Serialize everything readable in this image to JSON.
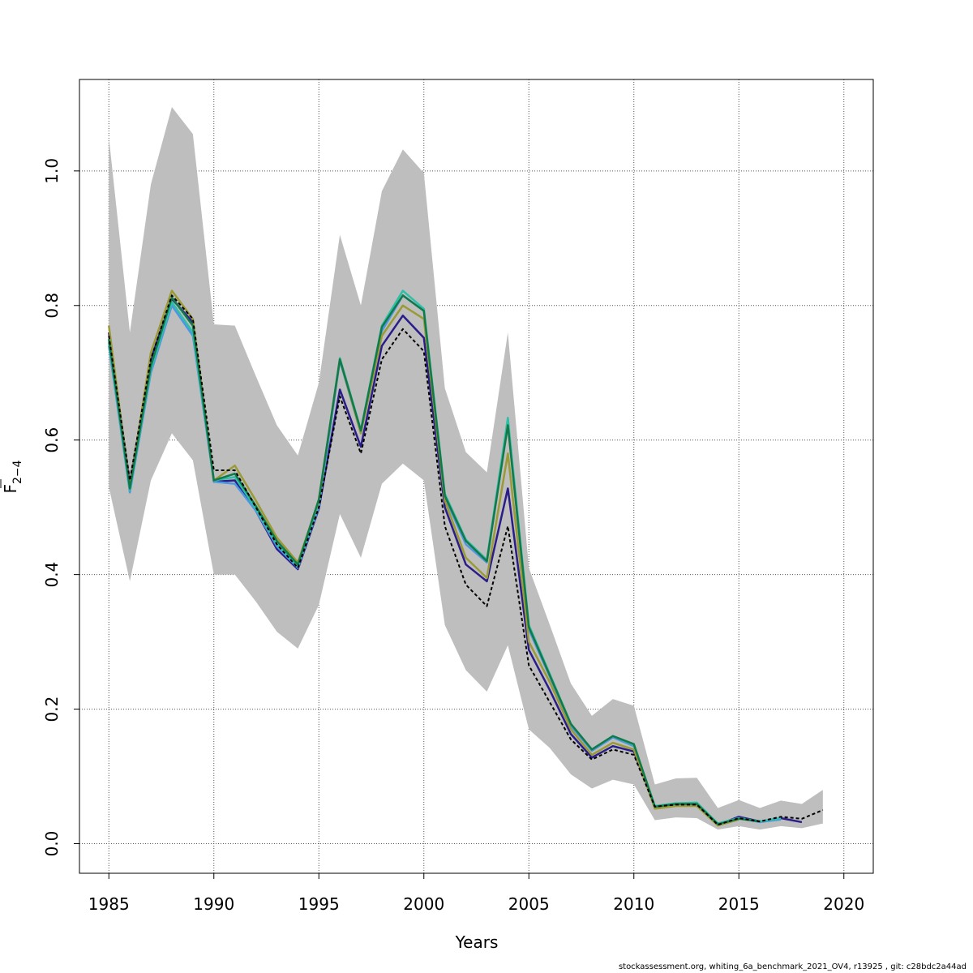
{
  "chart_data": {
    "type": "line",
    "xlabel": "Years",
    "ylabel": {
      "main": "F",
      "sub": "2−4"
    },
    "xlim": [
      1983.6,
      2021.4
    ],
    "ylim": [
      -0.044,
      1.136
    ],
    "x_ticks": [
      1985,
      1990,
      1995,
      2000,
      2005,
      2010,
      2015,
      2020
    ],
    "y_ticks": [
      0.0,
      0.2,
      0.4,
      0.6,
      0.8,
      1.0
    ],
    "x_tick_labels": [
      "1985",
      "1990",
      "1995",
      "2000",
      "2005",
      "2010",
      "2015",
      "2020"
    ],
    "y_tick_labels": [
      "0.0",
      "0.2",
      "0.4",
      "0.6",
      "0.8",
      "1.0"
    ],
    "grid": true,
    "band_color": "#bebebe",
    "confidence_band": {
      "x": [
        1985,
        1986,
        1987,
        1988,
        1989,
        1990,
        1991,
        1992,
        1993,
        1994,
        1995,
        1996,
        1997,
        1998,
        1999,
        2000,
        2001,
        2002,
        2003,
        2004,
        2005,
        2006,
        2007,
        2008,
        2009,
        2010,
        2011,
        2012,
        2013,
        2014,
        2015,
        2016,
        2017,
        2018,
        2019
      ],
      "lower": [
        0.53,
        0.39,
        0.54,
        0.61,
        0.57,
        0.4,
        0.4,
        0.36,
        0.315,
        0.29,
        0.355,
        0.49,
        0.425,
        0.535,
        0.565,
        0.54,
        0.325,
        0.258,
        0.226,
        0.295,
        0.17,
        0.142,
        0.103,
        0.082,
        0.095,
        0.088,
        0.035,
        0.039,
        0.038,
        0.021,
        0.026,
        0.021,
        0.026,
        0.023,
        0.03
      ],
      "upper": [
        1.05,
        0.76,
        0.98,
        1.095,
        1.055,
        0.772,
        0.77,
        0.695,
        0.622,
        0.577,
        0.685,
        0.905,
        0.8,
        0.97,
        1.032,
        0.997,
        0.677,
        0.582,
        0.552,
        0.76,
        0.41,
        0.325,
        0.238,
        0.19,
        0.215,
        0.205,
        0.088,
        0.097,
        0.098,
        0.053,
        0.065,
        0.053,
        0.064,
        0.059,
        0.08
      ]
    },
    "series": [
      {
        "style": "dashed",
        "color": "#000000",
        "x": [
          1985,
          1986,
          1987,
          1988,
          1989,
          1990,
          1991,
          1992,
          1993,
          1994,
          1995,
          1996,
          1997,
          1998,
          1999,
          2000,
          2001,
          2002,
          2003,
          2004,
          2005,
          2006,
          2007,
          2008,
          2009,
          2010,
          2011,
          2012,
          2013,
          2014,
          2015,
          2016,
          2017,
          2018,
          2019
        ],
        "values": [
          0.755,
          0.54,
          0.72,
          0.815,
          0.78,
          0.555,
          0.555,
          0.5,
          0.445,
          0.41,
          0.5,
          0.665,
          0.58,
          0.72,
          0.765,
          0.732,
          0.472,
          0.385,
          0.353,
          0.472,
          0.265,
          0.21,
          0.155,
          0.125,
          0.14,
          0.132,
          0.055,
          0.058,
          0.058,
          0.028,
          0.038,
          0.033,
          0.04,
          0.037,
          0.05
        ]
      },
      {
        "color": "#2a1d8a",
        "x": [
          1985,
          1986,
          1987,
          1988,
          1989,
          1990,
          1991,
          1992,
          1993,
          1994,
          1995,
          1996,
          1997,
          1998,
          1999,
          2000,
          2001,
          2002,
          2003,
          2004,
          2005,
          2006,
          2007,
          2008,
          2009,
          2010,
          2011,
          2012,
          2013,
          2014,
          2015,
          2016,
          2017,
          2018
        ],
        "values": [
          0.76,
          0.535,
          0.72,
          0.81,
          0.775,
          0.538,
          0.54,
          0.495,
          0.438,
          0.408,
          0.498,
          0.675,
          0.59,
          0.74,
          0.785,
          0.752,
          0.5,
          0.415,
          0.39,
          0.528,
          0.288,
          0.228,
          0.163,
          0.128,
          0.145,
          0.137,
          0.055,
          0.058,
          0.058,
          0.028,
          0.04,
          0.033,
          0.038,
          0.032
        ]
      },
      {
        "color": "#4d96e0",
        "x": [
          1985,
          1986,
          1987,
          1988,
          1989,
          1990,
          1991,
          1992,
          1993,
          1994,
          1995,
          1996,
          1997,
          1998,
          1999,
          2000,
          2001,
          2002,
          2003,
          2004,
          2005,
          2006,
          2007,
          2008,
          2009,
          2010,
          2011,
          2012,
          2013,
          2014,
          2015,
          2016,
          2017
        ],
        "values": [
          0.74,
          0.522,
          0.7,
          0.8,
          0.755,
          0.538,
          0.535,
          0.495,
          0.442,
          0.41,
          0.5,
          0.718,
          0.61,
          0.762,
          0.815,
          0.792,
          0.515,
          0.445,
          0.418,
          0.625,
          0.318,
          0.248,
          0.175,
          0.138,
          0.158,
          0.145,
          0.055,
          0.06,
          0.06,
          0.03,
          0.038,
          0.032,
          0.036
        ]
      },
      {
        "color": "#2fbfa8",
        "x": [
          1985,
          1986,
          1987,
          1988,
          1989,
          1990,
          1991,
          1992,
          1993,
          1994,
          1995,
          1996,
          1997,
          1998,
          1999,
          2000,
          2001,
          2002,
          2003,
          2004,
          2005,
          2006,
          2007,
          2008,
          2009,
          2010,
          2011,
          2012,
          2013,
          2014,
          2015,
          2016,
          2017
        ],
        "values": [
          0.745,
          0.525,
          0.705,
          0.805,
          0.76,
          0.54,
          0.545,
          0.498,
          0.445,
          0.412,
          0.508,
          0.722,
          0.615,
          0.77,
          0.822,
          0.795,
          0.52,
          0.452,
          0.422,
          0.633,
          0.325,
          0.252,
          0.178,
          0.14,
          0.16,
          0.147,
          0.056,
          0.06,
          0.061,
          0.03,
          0.038,
          0.033,
          0.038
        ]
      },
      {
        "color": "#9a9a36",
        "x": [
          1985,
          1986,
          1987,
          1988,
          1989,
          1990,
          1991,
          1992,
          1993,
          1994,
          1995,
          1996,
          1997,
          1998,
          1999,
          2000,
          2001,
          2002,
          2003,
          2004,
          2005,
          2006,
          2007,
          2008,
          2009,
          2010,
          2011,
          2012,
          2013,
          2014,
          2015
        ],
        "values": [
          0.77,
          0.53,
          0.73,
          0.822,
          0.78,
          0.54,
          0.562,
          0.51,
          0.455,
          0.418,
          0.51,
          0.72,
          0.61,
          0.755,
          0.8,
          0.78,
          0.51,
          0.425,
          0.395,
          0.58,
          0.3,
          0.24,
          0.17,
          0.132,
          0.15,
          0.14,
          0.052,
          0.056,
          0.056,
          0.027,
          0.036
        ]
      },
      {
        "color": "#117a48",
        "x": [
          1985,
          1986,
          1987,
          1988,
          1989,
          1990,
          1991,
          1992,
          1993,
          1994,
          1995,
          1996,
          1997,
          1998,
          1999,
          2000,
          2001,
          2002,
          2003,
          2004,
          2005,
          2006,
          2007,
          2008,
          2009,
          2010,
          2011,
          2012,
          2013,
          2014,
          2015,
          2016
        ],
        "values": [
          0.75,
          0.528,
          0.71,
          0.812,
          0.77,
          0.54,
          0.55,
          0.502,
          0.45,
          0.415,
          0.512,
          0.72,
          0.614,
          0.768,
          0.815,
          0.792,
          0.517,
          0.45,
          0.42,
          0.622,
          0.322,
          0.25,
          0.178,
          0.14,
          0.16,
          0.148,
          0.055,
          0.059,
          0.059,
          0.029,
          0.037,
          0.033
        ]
      }
    ]
  },
  "footer": "stockassessment.org, whiting_6a_benchmark_2021_OV4, r13925 , git: c28bdc2a44ad"
}
